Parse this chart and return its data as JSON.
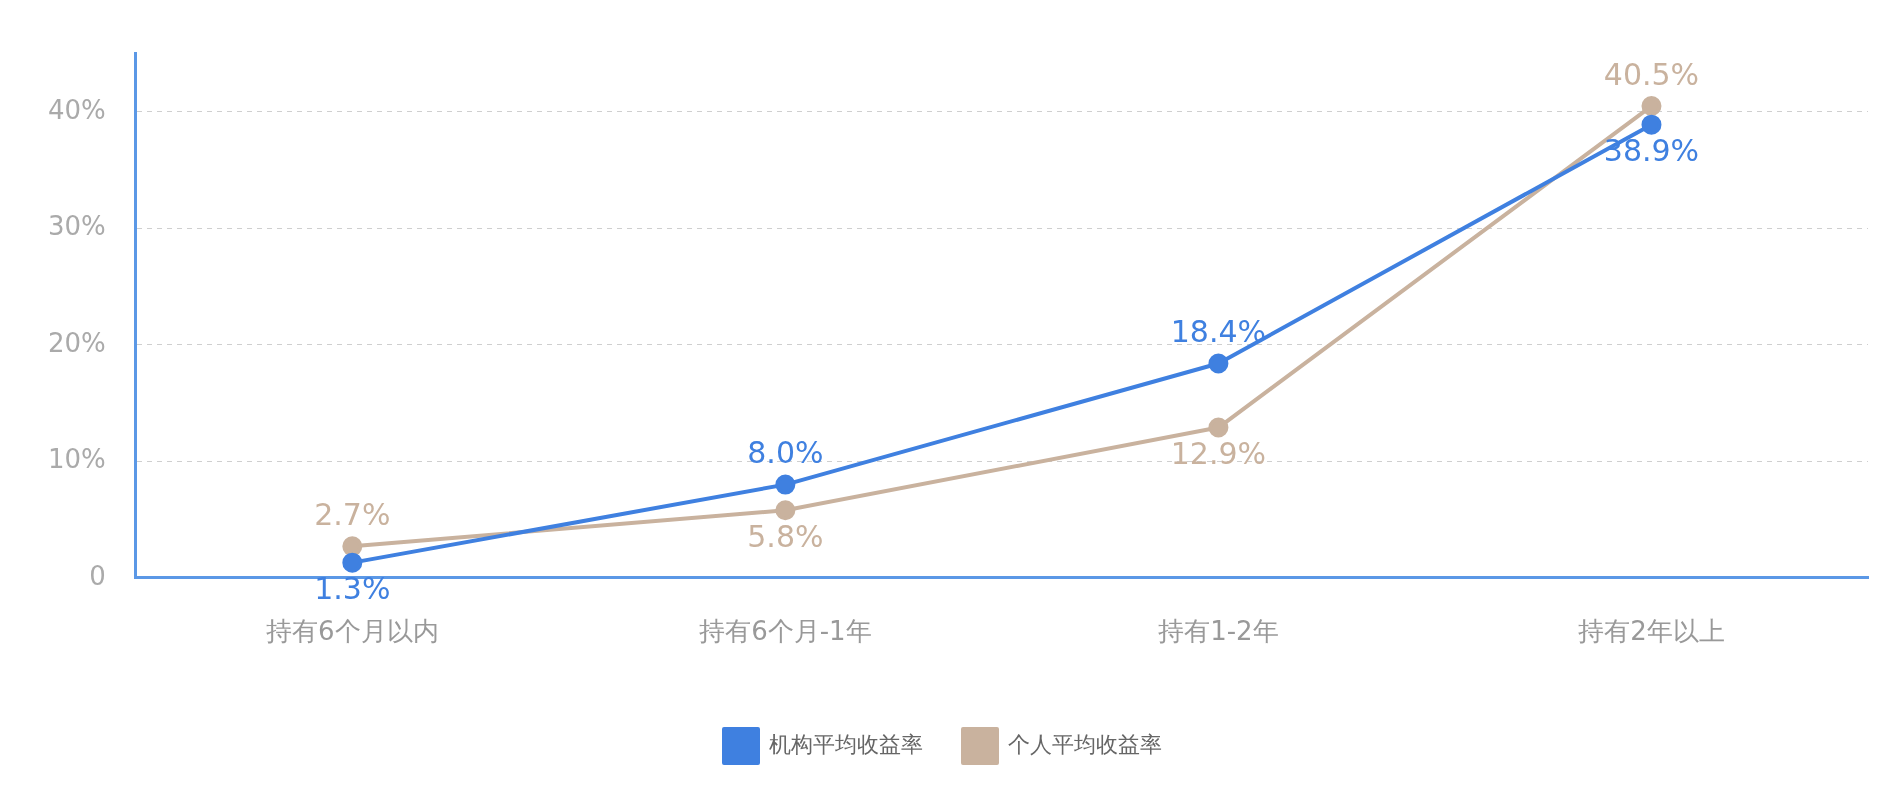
{
  "chart_data": {
    "type": "line",
    "categories": [
      "持有6个月以内",
      "持有6个月-1年",
      "持有1-2年",
      "持有2年以上"
    ],
    "series": [
      {
        "name": "机构平均收益率",
        "color": "#3f80e0",
        "values": [
          1.3,
          8.0,
          18.4,
          38.9
        ],
        "value_labels": [
          "1.3%",
          "8.0%",
          "18.4%",
          "38.9%"
        ]
      },
      {
        "name": "个人平均收益率",
        "color": "#c9b29e",
        "values": [
          2.7,
          5.8,
          12.9,
          40.5
        ],
        "value_labels": [
          "2.7%",
          "5.8%",
          "12.9%",
          "40.5%"
        ]
      }
    ],
    "ylim": [
      0,
      45
    ],
    "yticks": [
      {
        "value": 0,
        "label": "0"
      },
      {
        "value": 10,
        "label": "10%"
      },
      {
        "value": 20,
        "label": "20%"
      },
      {
        "value": 30,
        "label": "30%"
      },
      {
        "value": 40,
        "label": "40%"
      }
    ],
    "grid": "y",
    "legend": "bottom",
    "marker": "circle",
    "line_style": "solid"
  }
}
